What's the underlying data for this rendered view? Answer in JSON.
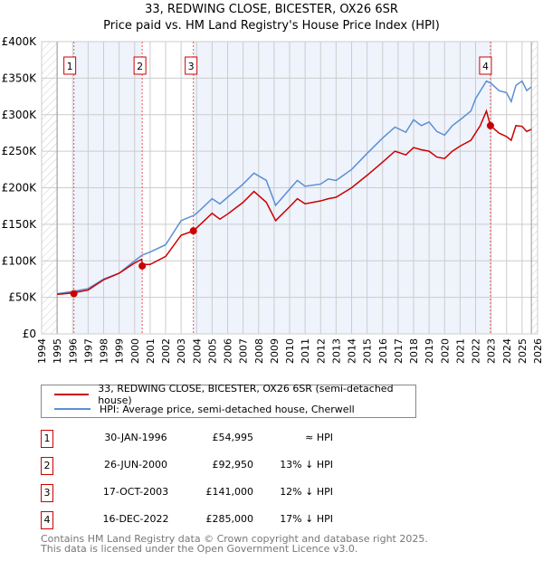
{
  "chart_data": {
    "type": "line",
    "title": "33, REDWING CLOSE, BICESTER, OX26 6SR",
    "subtitle": "Price paid vs. HM Land Registry's House Price Index (HPI)",
    "xlim": [
      1994,
      2026
    ],
    "ylim": [
      0,
      400000
    ],
    "x_ticks": [
      "1994",
      "1995",
      "1996",
      "1997",
      "1998",
      "1999",
      "2000",
      "2001",
      "2002",
      "2003",
      "2004",
      "2005",
      "2006",
      "2007",
      "2008",
      "2009",
      "2010",
      "2011",
      "2012",
      "2013",
      "2014",
      "2015",
      "2016",
      "2017",
      "2018",
      "2019",
      "2020",
      "2021",
      "2022",
      "2023",
      "2024",
      "2025",
      "2026"
    ],
    "y_ticks": [
      {
        "v": 0,
        "label": "£0"
      },
      {
        "v": 50000,
        "label": "£50K"
      },
      {
        "v": 100000,
        "label": "£100K"
      },
      {
        "v": 150000,
        "label": "£150K"
      },
      {
        "v": 200000,
        "label": "£200K"
      },
      {
        "v": 250000,
        "label": "£250K"
      },
      {
        "v": 300000,
        "label": "£300K"
      },
      {
        "v": 350000,
        "label": "£350K"
      },
      {
        "v": 400000,
        "label": "£400K"
      }
    ],
    "grid": true,
    "series": [
      {
        "name": "33, REDWING CLOSE, BICESTER, OX26 6SR (semi-detached house)",
        "color": "#cc0000",
        "points": [
          [
            1995,
            54000
          ],
          [
            1996,
            56000
          ],
          [
            1997,
            60000
          ],
          [
            1998,
            74000
          ],
          [
            1999,
            83000
          ],
          [
            2000,
            97000
          ],
          [
            2000.45,
            102000
          ],
          [
            2000.5,
            95000
          ],
          [
            2001,
            95000
          ],
          [
            2002,
            106000
          ],
          [
            2003,
            135000
          ],
          [
            2003.8,
            141000
          ],
          [
            2004,
            145000
          ],
          [
            2005,
            165000
          ],
          [
            2005.5,
            157000
          ],
          [
            2006,
            164000
          ],
          [
            2007,
            180000
          ],
          [
            2007.7,
            195000
          ],
          [
            2008.5,
            180000
          ],
          [
            2009.1,
            155000
          ],
          [
            2010,
            174000
          ],
          [
            2010.5,
            185000
          ],
          [
            2011,
            178000
          ],
          [
            2012,
            182000
          ],
          [
            2012.5,
            185000
          ],
          [
            2013,
            187000
          ],
          [
            2014,
            200000
          ],
          [
            2015,
            217000
          ],
          [
            2016,
            235000
          ],
          [
            2016.8,
            250000
          ],
          [
            2017.5,
            245000
          ],
          [
            2018,
            255000
          ],
          [
            2018.5,
            252000
          ],
          [
            2019,
            250000
          ],
          [
            2019.5,
            242000
          ],
          [
            2020,
            240000
          ],
          [
            2020.5,
            250000
          ],
          [
            2021,
            257000
          ],
          [
            2021.7,
            265000
          ],
          [
            2022.3,
            285000
          ],
          [
            2022.7,
            305000
          ],
          [
            2022.96,
            285000
          ],
          [
            2023.5,
            275000
          ],
          [
            2024,
            270000
          ],
          [
            2024.3,
            265000
          ],
          [
            2024.6,
            285000
          ],
          [
            2025,
            284000
          ],
          [
            2025.3,
            277000
          ],
          [
            2025.6,
            280000
          ]
        ]
      },
      {
        "name": "HPI: Average price, semi-detached house, Cherwell",
        "color": "#5b8fd4",
        "points": [
          [
            1995,
            55000
          ],
          [
            1996,
            58000
          ],
          [
            1997,
            62000
          ],
          [
            1998,
            75000
          ],
          [
            1999,
            83000
          ],
          [
            2000,
            100000
          ],
          [
            2000.5,
            108000
          ],
          [
            2001,
            112000
          ],
          [
            2002,
            122000
          ],
          [
            2003,
            155000
          ],
          [
            2003.8,
            162000
          ],
          [
            2004,
            165000
          ],
          [
            2005,
            185000
          ],
          [
            2005.5,
            178000
          ],
          [
            2006,
            187000
          ],
          [
            2007,
            205000
          ],
          [
            2007.7,
            220000
          ],
          [
            2008.5,
            210000
          ],
          [
            2009.1,
            176000
          ],
          [
            2010,
            198000
          ],
          [
            2010.5,
            210000
          ],
          [
            2011,
            202000
          ],
          [
            2012,
            205000
          ],
          [
            2012.5,
            212000
          ],
          [
            2013,
            210000
          ],
          [
            2014,
            225000
          ],
          [
            2015,
            247000
          ],
          [
            2016,
            268000
          ],
          [
            2016.8,
            283000
          ],
          [
            2017.5,
            276000
          ],
          [
            2018,
            293000
          ],
          [
            2018.5,
            285000
          ],
          [
            2019,
            290000
          ],
          [
            2019.5,
            277000
          ],
          [
            2020,
            272000
          ],
          [
            2020.5,
            285000
          ],
          [
            2021,
            293000
          ],
          [
            2021.7,
            305000
          ],
          [
            2022,
            322000
          ],
          [
            2022.7,
            346000
          ],
          [
            2023,
            343000
          ],
          [
            2023.5,
            333000
          ],
          [
            2024,
            330000
          ],
          [
            2024.3,
            318000
          ],
          [
            2024.6,
            340000
          ],
          [
            2025,
            346000
          ],
          [
            2025.3,
            333000
          ],
          [
            2025.6,
            338000
          ]
        ]
      }
    ],
    "sales": [
      {
        "label": "1",
        "x": 1996.08,
        "price": 54995,
        "date": "30-JAN-1996",
        "price_label": "£54,995",
        "hpi": "≈ HPI"
      },
      {
        "label": "2",
        "x": 2000.49,
        "price": 92950,
        "date": "26-JUN-2000",
        "price_label": "£92,950",
        "hpi": "13% ↓ HPI"
      },
      {
        "label": "3",
        "x": 2003.79,
        "price": 141000,
        "date": "17-OCT-2003",
        "price_label": "£141,000",
        "hpi": "12% ↓ HPI"
      },
      {
        "label": "4",
        "x": 2022.96,
        "price": 285000,
        "date": "16-DEC-2022",
        "price_label": "£285,000",
        "hpi": "17% ↓ HPI"
      }
    ],
    "data_start": 1995,
    "data_end": 2025.6
  },
  "footer": [
    "Contains HM Land Registry data © Crown copyright and database right 2025.",
    "This data is licensed under the Open Government Licence v3.0."
  ]
}
